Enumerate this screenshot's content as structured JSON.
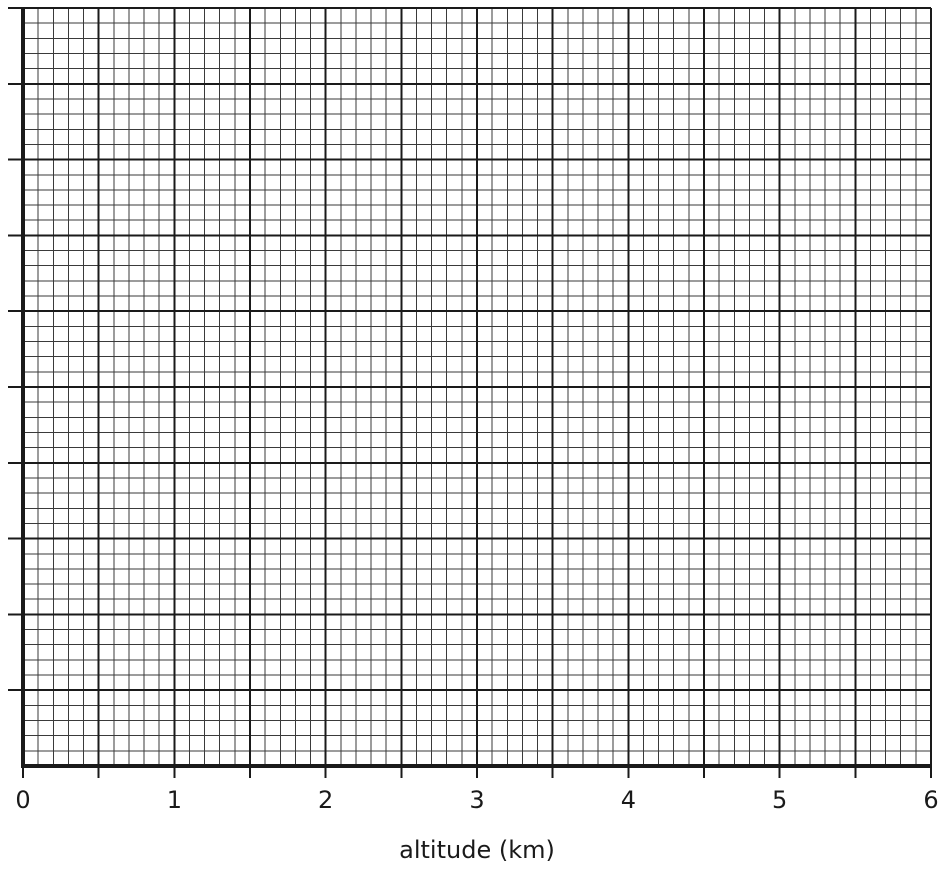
{
  "chart_data": {
    "type": "line",
    "title": "",
    "xlabel": "altitude (km)",
    "ylabel": "",
    "xlim": [
      0,
      6
    ],
    "x_ticks": [
      "0",
      "1",
      "2",
      "3",
      "4",
      "5",
      "6"
    ],
    "x_minor_tick_step": 0.5,
    "y_major_divisions": 10,
    "y_tick_labels": [],
    "grid": true,
    "series": [],
    "legend": "none",
    "colors": {
      "grid_fine": "#3a3a3a",
      "grid_major": "#1a1a1a",
      "axis": "#1a1a1a",
      "text": "#1a1a1a",
      "background": "#ffffff"
    }
  }
}
